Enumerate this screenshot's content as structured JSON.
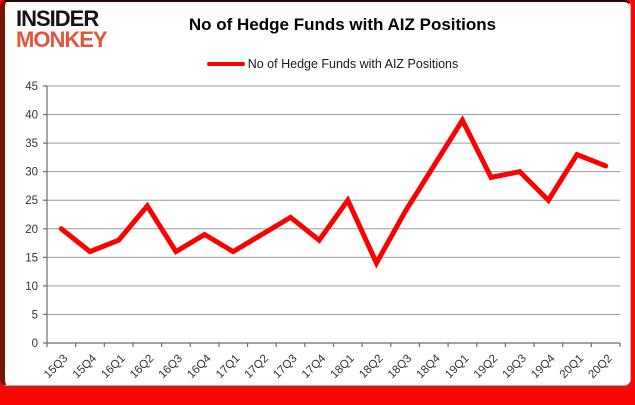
{
  "brand": {
    "line1": "INSIDER",
    "line2": "MONKEY",
    "line1_color": "#141414",
    "line2_color": "#e0563f"
  },
  "title": "No of Hedge Funds with AIZ Positions",
  "legend": {
    "label": "No of Hedge Funds with AIZ Positions",
    "line_color": "#fe0000"
  },
  "frame": {
    "background_color": "#fb0703",
    "card_color": "#ffffff",
    "left_edge_color": "#771509"
  },
  "chart_data": {
    "type": "line",
    "title": "No of Hedge Funds with AIZ Positions",
    "categories": [
      "15Q3",
      "15Q4",
      "16Q1",
      "16Q2",
      "16Q3",
      "16Q4",
      "17Q1",
      "17Q2",
      "17Q3",
      "17Q4",
      "18Q1",
      "18Q2",
      "18Q3",
      "18Q4",
      "19Q1",
      "19Q2",
      "19Q3",
      "19Q4",
      "20Q1",
      "20Q2"
    ],
    "series": [
      {
        "name": "No of Hedge Funds with AIZ Positions",
        "color": "#fe0000",
        "values": [
          20,
          16,
          18,
          24,
          16,
          19,
          16,
          19,
          22,
          18,
          25,
          14,
          23,
          31,
          39,
          29,
          30,
          25,
          33,
          31
        ]
      }
    ],
    "xlabel": "",
    "ylabel": "",
    "ylim": [
      0,
      45
    ],
    "ytick_step": 5,
    "grid": true,
    "gridline_color": "#9b9b9b",
    "axis_color": "#6e6e6e",
    "tick_label_color": "#333333",
    "legend_position": "top"
  }
}
